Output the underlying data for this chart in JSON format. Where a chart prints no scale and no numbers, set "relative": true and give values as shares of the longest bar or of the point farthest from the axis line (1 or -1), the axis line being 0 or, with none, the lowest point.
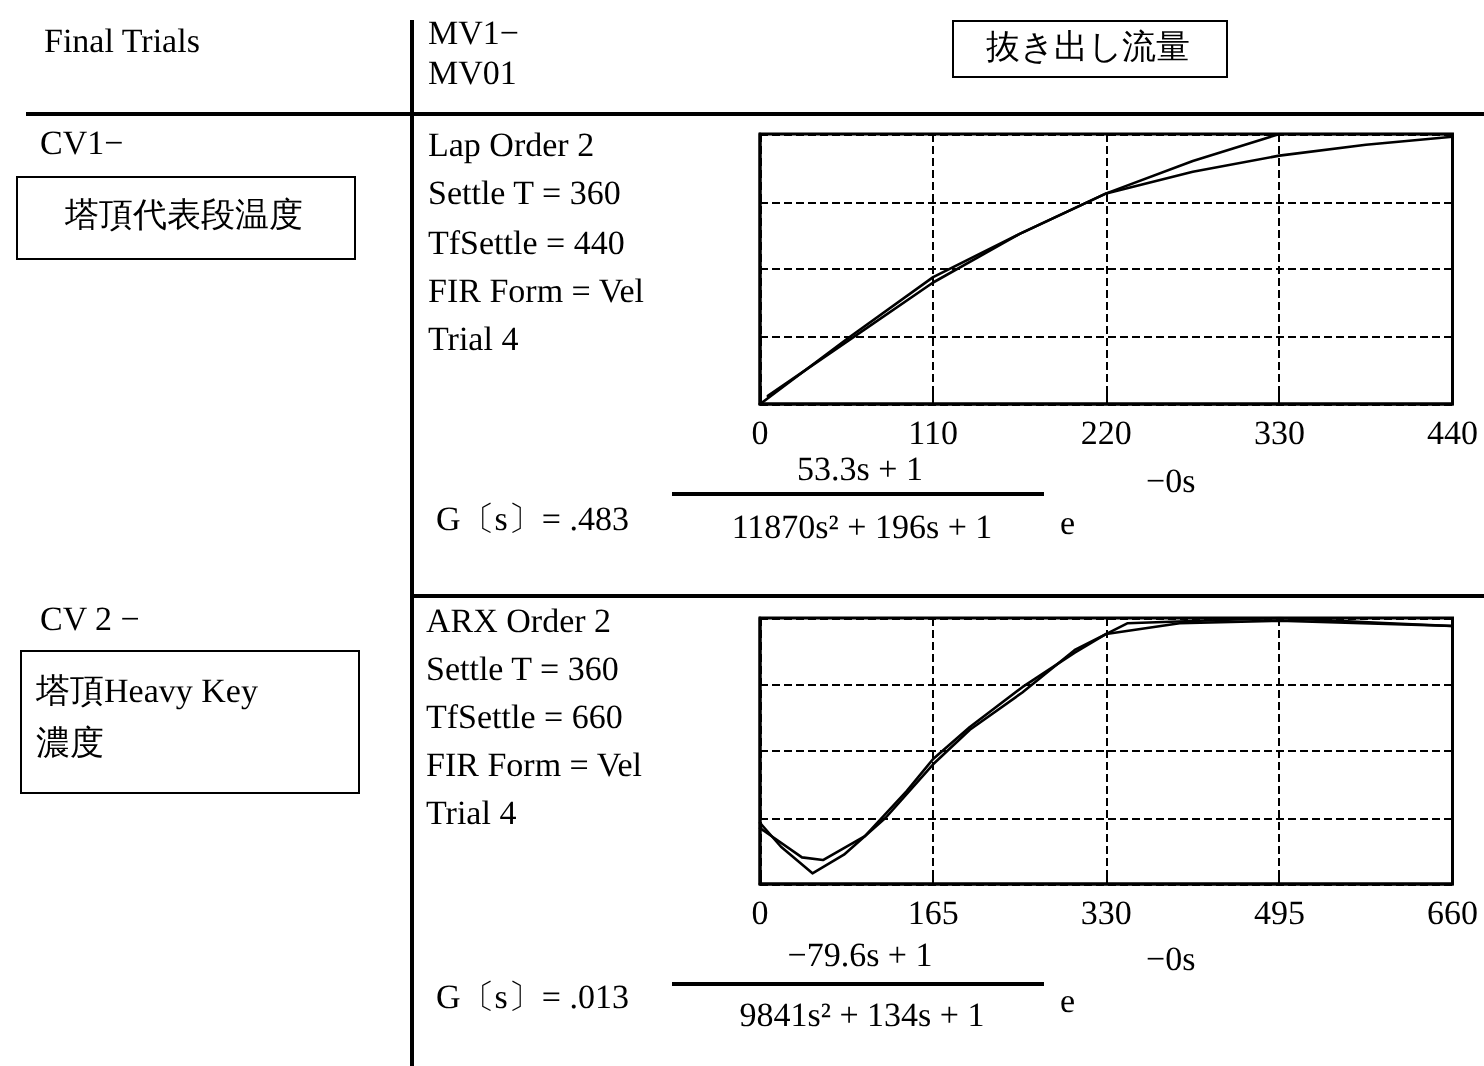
{
  "chart_data": [
    {
      "type": "line",
      "relative": true,
      "grid": true,
      "marker": "none",
      "line_style": "solid",
      "xlim": [
        0,
        440
      ],
      "xticks": [
        0,
        110,
        220,
        330,
        440
      ],
      "series": [
        {
          "color": "#000000",
          "x": [
            0,
            55,
            110,
            165,
            220,
            275,
            330,
            385,
            440
          ],
          "values": [
            0,
            0.24,
            0.47,
            0.63,
            0.78,
            0.9,
            1,
            1,
            1
          ]
        },
        {
          "color": "#000000",
          "x": [
            5,
            55,
            110,
            165,
            220,
            275,
            330,
            385,
            440
          ],
          "values": [
            0.03,
            0.23,
            0.45,
            0.63,
            0.78,
            0.86,
            0.92,
            0.96,
            0.99
          ]
        }
      ],
      "annotations": [
        "Final Trials",
        "MV1−",
        "MV01",
        "抜き出し流量",
        "CV1−",
        "塔頂代表段温度",
        "Lap Order 2",
        "Settle T = 360",
        "TfSettle = 440",
        "FIR Form = Vel",
        "Trial 4",
        "G〔s〕= .483",
        "53.3s + 1",
        "11870s² + 196s + 1",
        "e",
        "−0s"
      ]
    },
    {
      "type": "line",
      "relative": true,
      "grid": true,
      "marker": "none",
      "line_style": "solid",
      "xlim": [
        0,
        660
      ],
      "xticks": [
        0,
        165,
        330,
        495,
        660
      ],
      "series": [
        {
          "color": "#000000",
          "x": [
            0,
            40,
            60,
            100,
            140,
            165,
            200,
            250,
            300,
            330,
            400,
            495,
            660
          ],
          "values": [
            0.21,
            0.1,
            0.09,
            0.18,
            0.35,
            0.47,
            0.59,
            0.74,
            0.87,
            0.94,
            0.98,
            0.99,
            0.97
          ]
        },
        {
          "color": "#000000",
          "x": [
            0,
            20,
            50,
            80,
            120,
            165,
            200,
            250,
            300,
            350,
            495,
            600,
            660
          ],
          "values": [
            0.23,
            0.14,
            0.04,
            0.11,
            0.25,
            0.45,
            0.58,
            0.72,
            0.88,
            0.98,
            1,
            0.98,
            0.97
          ]
        }
      ],
      "annotations": [
        "CV 2 −",
        "塔頂Heavy Key",
        "濃度",
        "ARX Order 2",
        "Settle T = 360",
        "TfSettle = 660",
        "FIR Form = Vel",
        "Trial 4",
        "G〔s〕= .013",
        "−79.6s + 1",
        "9841s² + 134s + 1",
        "e",
        "−0s"
      ]
    }
  ]
}
